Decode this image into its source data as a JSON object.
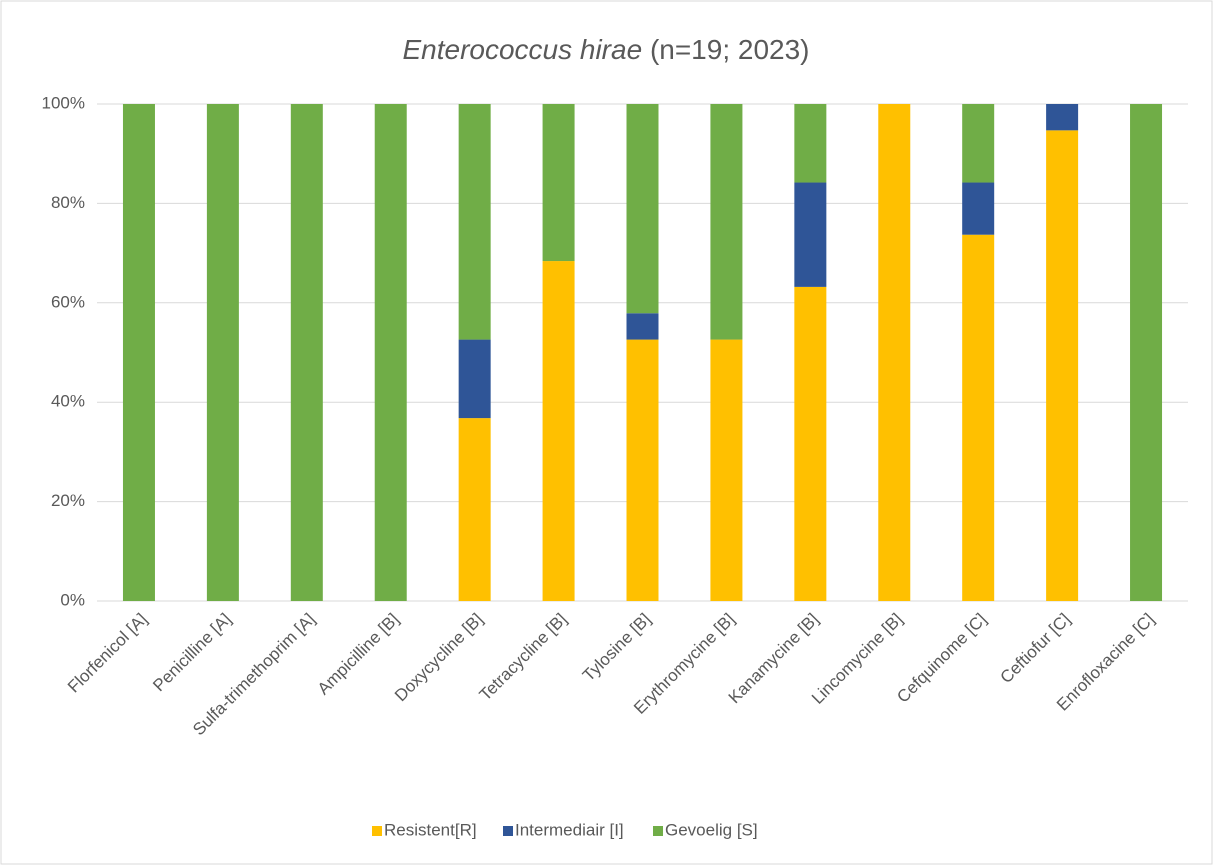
{
  "chart_data": {
    "type": "stacked_bar",
    "title_species": "Enterococcus hirae",
    "title": "(n=19; 2023)",
    "categories": [
      "Florfenicol [A]",
      "Penicilline [A]",
      "Sulfa-trimethoprim [A]",
      "Ampicilline [B]",
      "Doxycycline [B]",
      "Tetracycline [B]",
      "Tylosine [B]",
      "Erythromycine [B]",
      "Kanamycine [B]",
      "Lincomycine [B]",
      "Cefquinome [C]",
      "Ceftiofur [C]",
      "Enrofloxacine [C]"
    ],
    "series": [
      {
        "name": "Resistent[R]",
        "color": "#FFC000",
        "values": [
          0,
          0,
          0,
          0,
          36.8,
          68.4,
          52.6,
          52.6,
          63.2,
          100,
          73.7,
          94.7,
          0
        ]
      },
      {
        "name": "Intermediair [I]",
        "color": "#2F5597",
        "values": [
          0,
          0,
          0,
          0,
          15.8,
          0,
          5.3,
          0,
          21.0,
          0,
          10.5,
          5.3,
          0
        ]
      },
      {
        "name": "Gevoelig [S]",
        "color": "#70AD47",
        "values": [
          100,
          100,
          100,
          100,
          47.4,
          31.6,
          42.1,
          47.4,
          15.8,
          0,
          15.8,
          0,
          100
        ]
      }
    ],
    "ylim": [
      0,
      100
    ],
    "yticks": [
      {
        "value": 0,
        "label": "0%"
      },
      {
        "value": 20,
        "label": "20%"
      },
      {
        "value": 40,
        "label": "40%"
      },
      {
        "value": 60,
        "label": "60%"
      },
      {
        "value": 80,
        "label": "80%"
      },
      {
        "value": 100,
        "label": "100%"
      }
    ],
    "grid": true,
    "legend": "bottom"
  }
}
